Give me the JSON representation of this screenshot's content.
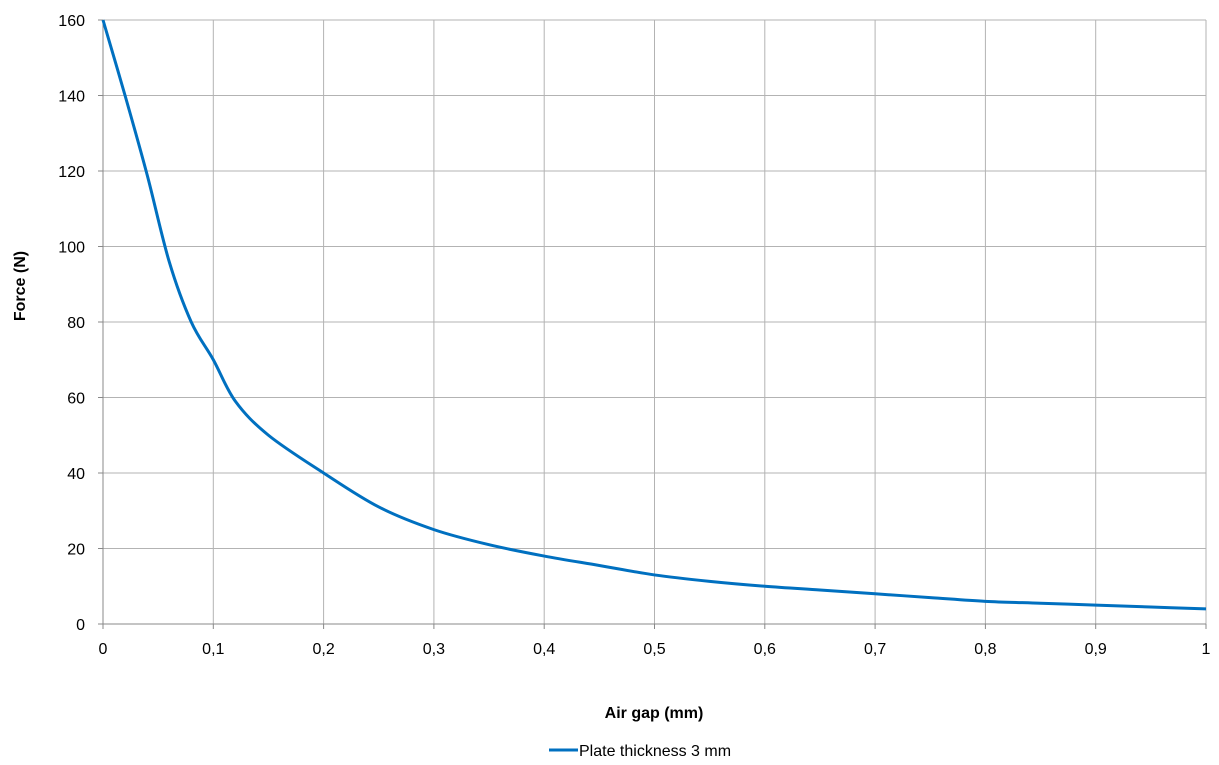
{
  "chart_data": {
    "type": "line",
    "title": "",
    "xlabel": "Air gap (mm)",
    "ylabel": "Force (N)",
    "xlim": [
      0,
      1
    ],
    "ylim": [
      0,
      160
    ],
    "x_ticks": [
      "0",
      "0,1",
      "0,2",
      "0,3",
      "0,4",
      "0,5",
      "0,6",
      "0,7",
      "0,8",
      "0,9",
      "1"
    ],
    "y_ticks": [
      "0",
      "20",
      "40",
      "60",
      "80",
      "100",
      "120",
      "140",
      "160"
    ],
    "grid": true,
    "legend_position": "bottom-center",
    "series": [
      {
        "name": "Plate thickness 3 mm",
        "color": "#0070c0",
        "x": [
          0,
          0.02,
          0.04,
          0.06,
          0.08,
          0.1,
          0.12,
          0.15,
          0.2,
          0.25,
          0.3,
          0.35,
          0.4,
          0.45,
          0.5,
          0.55,
          0.6,
          0.65,
          0.7,
          0.75,
          0.8,
          0.85,
          0.9,
          0.95,
          1.0
        ],
        "y": [
          160,
          140,
          119,
          96,
          80,
          70,
          59,
          50,
          40,
          31,
          25,
          21,
          18,
          15.5,
          13,
          11.3,
          10,
          9,
          8,
          7,
          6,
          5.5,
          5,
          4.5,
          4
        ]
      }
    ]
  }
}
